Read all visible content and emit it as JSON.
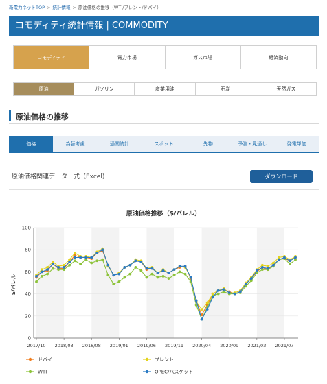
{
  "breadcrumb": {
    "items": [
      "新電力ネットTOP",
      "統計情報",
      "原油価格の推移（WTI/ブレント/ドバイ）"
    ],
    "separator": ">"
  },
  "page_title": "コモディティ統計情報 | COMMODITY",
  "category_tabs": [
    {
      "label": "コモディティ",
      "active": true
    },
    {
      "label": "電力市場",
      "active": false
    },
    {
      "label": "ガス市場",
      "active": false
    },
    {
      "label": "経済動向",
      "active": false
    }
  ],
  "sub_tabs": [
    {
      "label": "原油",
      "active": true
    },
    {
      "label": "ガソリン",
      "active": false
    },
    {
      "label": "産業用油",
      "active": false
    },
    {
      "label": "石炭",
      "active": false
    },
    {
      "label": "天然ガス",
      "active": false
    }
  ],
  "section_title": "原油価格の推移",
  "nav_tabs": [
    {
      "label": "価格",
      "active": true
    },
    {
      "label": "為替考慮",
      "active": false
    },
    {
      "label": "通関統計",
      "active": false
    },
    {
      "label": "スポット",
      "active": false
    },
    {
      "label": "先物",
      "active": false
    },
    {
      "label": "予測・見通し",
      "active": false
    },
    {
      "label": "発電単価",
      "active": false
    }
  ],
  "excel_label": "原油価格関連データ一式（Excel)",
  "download_label": "ダウンロード",
  "colors": {
    "primary_blue": "#1f6fad",
    "gold_tab": "#d6a24d",
    "brown_tab": "#a68d5c"
  },
  "chart_data": {
    "type": "line",
    "title": "原油価格推移（$/バレル）",
    "ylabel": "$/バレル",
    "xlabel": "",
    "ylim": [
      0,
      100
    ],
    "yticks": [
      0,
      20,
      40,
      60,
      80,
      100
    ],
    "x_tick_labels": [
      "2017/10",
      "2018/03",
      "2018/08",
      "2019/01",
      "2019/06",
      "2019/11",
      "2020/04",
      "2020/09",
      "2021/02",
      "2021/07"
    ],
    "x": [
      "2017/10",
      "2017/11",
      "2017/12",
      "2018/01",
      "2018/02",
      "2018/03",
      "2018/04",
      "2018/05",
      "2018/06",
      "2018/07",
      "2018/08",
      "2018/09",
      "2018/10",
      "2018/11",
      "2018/12",
      "2019/01",
      "2019/02",
      "2019/03",
      "2019/04",
      "2019/05",
      "2019/06",
      "2019/07",
      "2019/08",
      "2019/09",
      "2019/10",
      "2019/11",
      "2019/12",
      "2020/01",
      "2020/02",
      "2020/03",
      "2020/04",
      "2020/05",
      "2020/06",
      "2020/07",
      "2020/08",
      "2020/09",
      "2020/10",
      "2020/11",
      "2020/12",
      "2021/01",
      "2021/02",
      "2021/03",
      "2021/04",
      "2021/05",
      "2021/06",
      "2021/07",
      "2021/08",
      "2021/09"
    ],
    "grid": true,
    "legend_position": "bottom",
    "series": [
      {
        "name": "ドバイ",
        "color": "#f07d1e",
        "values": [
          55,
          60,
          61,
          67,
          63,
          63,
          69,
          75,
          73,
          73,
          72,
          77,
          79,
          66,
          57,
          59,
          64,
          66,
          70,
          69,
          62,
          63,
          59,
          61,
          59,
          62,
          64,
          65,
          54,
          34,
          21,
          30,
          40,
          43,
          44,
          42,
          40,
          42,
          49,
          54,
          60,
          64,
          62,
          66,
          71,
          72,
          70,
          73
        ]
      },
      {
        "name": "ブレント",
        "color": "#e3d31c",
        "values": [
          57,
          62,
          64,
          69,
          65,
          66,
          71,
          77,
          74,
          74,
          73,
          78,
          81,
          65,
          57,
          59,
          64,
          66,
          71,
          70,
          63,
          64,
          59,
          62,
          59,
          62,
          65,
          64,
          55,
          33,
          26,
          32,
          40,
          43,
          45,
          41,
          41,
          43,
          50,
          55,
          62,
          66,
          65,
          68,
          73,
          74,
          71,
          74
        ]
      },
      {
        "name": "WTI",
        "color": "#8dc33a",
        "values": [
          51,
          56,
          58,
          63,
          62,
          62,
          66,
          70,
          67,
          71,
          68,
          70,
          71,
          57,
          49,
          51,
          55,
          58,
          64,
          61,
          55,
          58,
          55,
          56,
          54,
          57,
          60,
          58,
          51,
          30,
          17,
          28,
          38,
          40,
          42,
          40,
          40,
          41,
          47,
          52,
          59,
          62,
          62,
          65,
          71,
          72,
          67,
          71
        ]
      },
      {
        "name": "OPEC/バスケット",
        "color": "#2b7bc4",
        "values": [
          56,
          60,
          62,
          67,
          64,
          64,
          69,
          73,
          73,
          73,
          73,
          77,
          80,
          66,
          57,
          58,
          64,
          66,
          70,
          69,
          63,
          63,
          59,
          61,
          59,
          62,
          65,
          65,
          55,
          34,
          17,
          26,
          37,
          43,
          44,
          41,
          40,
          42,
          49,
          54,
          61,
          64,
          63,
          66,
          71,
          73,
          70,
          73
        ]
      }
    ]
  }
}
